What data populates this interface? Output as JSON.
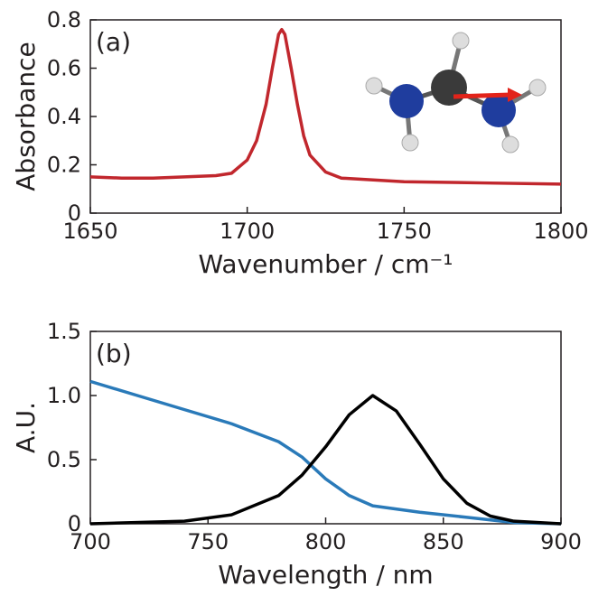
{
  "chart_data": [
    {
      "type": "line",
      "annotation": "(a)",
      "x_label": "Wavenumber / cm⁻¹",
      "y_label": "Absorbance",
      "xlim": [
        1650,
        1800
      ],
      "xticks": [
        1650,
        1700,
        1750,
        1800
      ],
      "ylim": [
        0,
        0.8
      ],
      "yticks": [
        0,
        0.2,
        0.4,
        0.6,
        0.8
      ],
      "series": [
        {
          "color": "#c1272d",
          "x": [
            1650,
            1660,
            1670,
            1680,
            1690,
            1695,
            1700,
            1703,
            1706,
            1708,
            1710,
            1711,
            1712,
            1714,
            1716,
            1718,
            1720,
            1725,
            1730,
            1750,
            1775,
            1800
          ],
          "values": [
            0.15,
            0.145,
            0.145,
            0.15,
            0.155,
            0.165,
            0.22,
            0.3,
            0.45,
            0.6,
            0.74,
            0.76,
            0.74,
            0.6,
            0.45,
            0.32,
            0.24,
            0.17,
            0.145,
            0.13,
            0.125,
            0.12
          ]
        }
      ]
    },
    {
      "type": "line",
      "annotation": "(b)",
      "x_label": "Wavelength / nm",
      "y_label": "A.U.",
      "xlim": [
        700,
        900
      ],
      "xticks": [
        700,
        750,
        800,
        850,
        900
      ],
      "ylim": [
        0,
        1.5
      ],
      "yticks": [
        0,
        0.5,
        {
          "value": 1,
          "label": "1.0"
        },
        1.5
      ],
      "series": [
        {
          "color": "#2a7ab9",
          "x": [
            700,
            720,
            740,
            760,
            780,
            790,
            800,
            810,
            820,
            840,
            860,
            880,
            900
          ],
          "values": [
            1.11,
            1.0,
            0.89,
            0.78,
            0.64,
            0.52,
            0.35,
            0.22,
            0.14,
            0.09,
            0.05,
            0.01,
            0
          ]
        },
        {
          "color": "#000000",
          "x": [
            700,
            740,
            760,
            780,
            790,
            800,
            810,
            820,
            830,
            840,
            850,
            860,
            870,
            880,
            900
          ],
          "values": [
            0,
            0.02,
            0.07,
            0.22,
            0.38,
            0.6,
            0.85,
            1.0,
            0.88,
            0.62,
            0.35,
            0.16,
            0.06,
            0.02,
            0
          ]
        }
      ]
    }
  ]
}
